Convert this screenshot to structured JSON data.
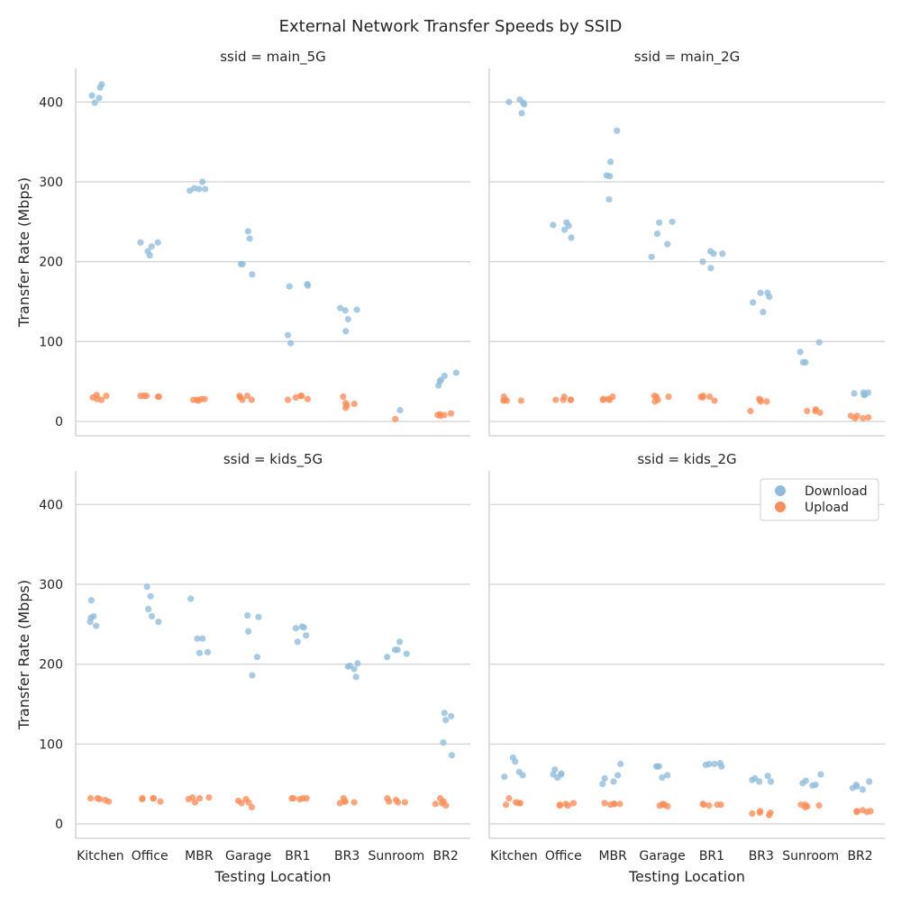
{
  "chart_data": {
    "type": "scatter",
    "subtype": "stripplot-faceted",
    "title": "External Network Transfer Speeds by SSID",
    "xlabel": "Testing Location",
    "ylabel": "Transfer Rate (Mbps)",
    "categories": [
      "Kitchen",
      "Office",
      "MBR",
      "Garage",
      "BR1",
      "BR3",
      "Sunroom",
      "BR2"
    ],
    "ylim": [
      -18,
      442
    ],
    "yticks": [
      0,
      100,
      200,
      300,
      400
    ],
    "grid": "horizontal",
    "legend": {
      "placement": "top-right of kids_2G panel",
      "entries": [
        {
          "label": "Download",
          "color": "#8fbcdb"
        },
        {
          "label": "Upload",
          "color": "#fc8d59"
        }
      ]
    },
    "facets": [
      {
        "title": "ssid = main_5G",
        "download": [
          [
            418,
            422,
            408,
            399,
            405
          ],
          [
            208,
            224,
            224,
            219,
            213
          ],
          [
            292,
            291,
            300,
            289,
            291
          ],
          [
            197,
            184,
            197,
            229,
            238
          ],
          [
            98,
            108,
            172,
            170,
            169
          ],
          [
            113,
            140,
            142,
            139,
            128
          ],
          [
            14
          ],
          [
            52,
            45,
            61,
            57,
            50
          ]
        ],
        "upload": [
          [
            27,
            33,
            30,
            32,
            28
          ],
          [
            32,
            32,
            31,
            32,
            31
          ],
          [
            26,
            27,
            28,
            27,
            28
          ],
          [
            27,
            30,
            27,
            32,
            32
          ],
          [
            27,
            30,
            32,
            32,
            28
          ],
          [
            31,
            17,
            20,
            23,
            22
          ],
          [
            3
          ],
          [
            8,
            7,
            9,
            10,
            8
          ]
        ]
      },
      {
        "title": "ssid = main_2G",
        "download": [
          [
            400,
            403,
            386,
            397,
            399
          ],
          [
            230,
            245,
            249,
            240,
            246
          ],
          [
            278,
            307,
            308,
            325,
            364
          ],
          [
            222,
            235,
            250,
            206,
            249
          ],
          [
            210,
            213,
            200,
            210,
            192
          ],
          [
            156,
            137,
            161,
            149,
            161
          ],
          [
            99,
            74,
            87,
            74
          ],
          [
            33,
            33,
            36,
            36,
            35
          ]
        ],
        "upload": [
          [
            26,
            26,
            31,
            27,
            26
          ],
          [
            31,
            27,
            27,
            27,
            27
          ],
          [
            27,
            28,
            31,
            28,
            27
          ],
          [
            31,
            27,
            31,
            32,
            25
          ],
          [
            31,
            26,
            30,
            31,
            32
          ],
          [
            25,
            28,
            13,
            25,
            27
          ],
          [
            15,
            13,
            11,
            13
          ],
          [
            4,
            4,
            7,
            7,
            5
          ]
        ]
      },
      {
        "title": "ssid = kids_5G",
        "download": [
          [
            280,
            258,
            260,
            248,
            253
          ],
          [
            260,
            269,
            297,
            285,
            253
          ],
          [
            214,
            232,
            282,
            215,
            232
          ],
          [
            241,
            209,
            186,
            261,
            259
          ],
          [
            236,
            245,
            228,
            247,
            246
          ],
          [
            184,
            197,
            201,
            198,
            194
          ],
          [
            218,
            209,
            213,
            218,
            228
          ],
          [
            102,
            135,
            86,
            130,
            139
          ]
        ],
        "upload": [
          [
            28,
            30,
            32,
            32,
            31
          ],
          [
            28,
            32,
            31,
            32,
            32
          ],
          [
            33,
            32,
            27,
            31,
            33
          ],
          [
            27,
            29,
            31,
            26,
            21
          ],
          [
            32,
            32,
            32,
            32,
            31
          ],
          [
            28,
            27,
            26,
            32,
            28
          ],
          [
            27,
            27,
            32,
            28,
            30
          ],
          [
            32,
            28,
            23,
            26,
            25
          ]
        ]
      },
      {
        "title": "ssid = kids_2G",
        "download": [
          [
            59,
            65,
            83,
            78,
            61
          ],
          [
            68,
            63,
            58,
            62,
            62
          ],
          [
            57,
            61,
            75,
            50,
            53
          ],
          [
            72,
            72,
            72,
            61,
            58
          ],
          [
            74,
            75,
            76,
            72,
            75
          ],
          [
            53,
            60,
            53,
            55,
            57
          ],
          [
            51,
            49,
            48,
            62,
            54
          ],
          [
            47,
            49,
            45,
            53,
            43
          ]
        ],
        "upload": [
          [
            26,
            26,
            32,
            27,
            24
          ],
          [
            23,
            26,
            25,
            24,
            23
          ],
          [
            25,
            25,
            26,
            24,
            25
          ],
          [
            22,
            25,
            24,
            24,
            23
          ],
          [
            25,
            24,
            23,
            24,
            24
          ],
          [
            14,
            16,
            11,
            14,
            13
          ],
          [
            23,
            22,
            21,
            24,
            24
          ],
          [
            16,
            15,
            16,
            15,
            17
          ]
        ]
      }
    ]
  }
}
